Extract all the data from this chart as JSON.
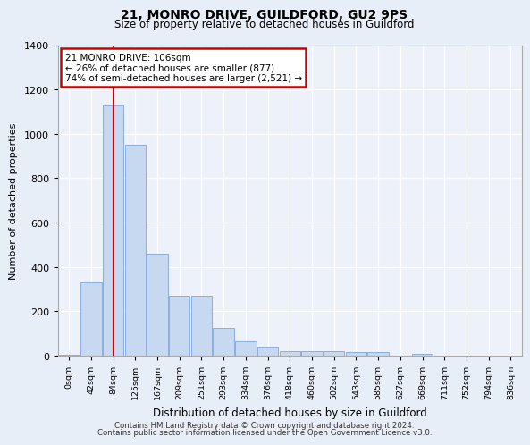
{
  "title1": "21, MONRO DRIVE, GUILDFORD, GU2 9PS",
  "title2": "Size of property relative to detached houses in Guildford",
  "xlabel": "Distribution of detached houses by size in Guildford",
  "ylabel": "Number of detached properties",
  "bar_labels": [
    "0sqm",
    "42sqm",
    "84sqm",
    "125sqm",
    "167sqm",
    "209sqm",
    "251sqm",
    "293sqm",
    "334sqm",
    "376sqm",
    "418sqm",
    "460sqm",
    "502sqm",
    "543sqm",
    "585sqm",
    "627sqm",
    "669sqm",
    "711sqm",
    "752sqm",
    "794sqm",
    "836sqm"
  ],
  "bar_values": [
    5,
    330,
    1130,
    950,
    460,
    270,
    270,
    125,
    65,
    40,
    20,
    20,
    20,
    15,
    15,
    0,
    10,
    0,
    0,
    0,
    0
  ],
  "bar_color": "#c6d9f1",
  "bar_edge_color": "#8aade0",
  "vline_x": 2.0,
  "vline_color": "#cc0000",
  "annotation_text": "21 MONRO DRIVE: 106sqm\n← 26% of detached houses are smaller (877)\n74% of semi-detached houses are larger (2,521) →",
  "annotation_box_color": "#cc0000",
  "ylim": [
    0,
    1400
  ],
  "yticks": [
    0,
    200,
    400,
    600,
    800,
    1000,
    1200,
    1400
  ],
  "footer1": "Contains HM Land Registry data © Crown copyright and database right 2024.",
  "footer2": "Contains public sector information licensed under the Open Government Licence v3.0.",
  "bg_color": "#e8eef8",
  "plot_bg_color": "#edf2fa"
}
